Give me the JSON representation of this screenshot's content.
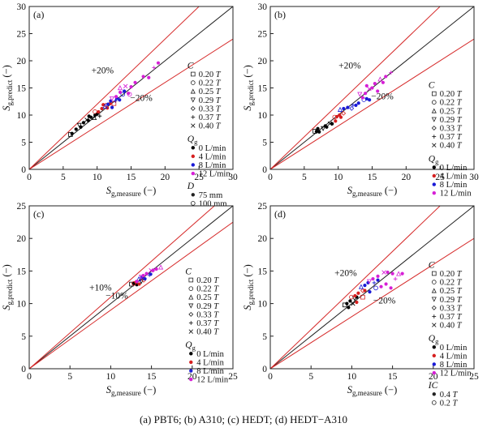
{
  "caption": "(a) PBT6; (b) A310; (c) HEDT; (d) HEDT−A310",
  "chart_data": [
    {
      "type": "scatter",
      "panel_label": "(a)",
      "xlabel_main": "S",
      "xlabel_sub": "g,measure",
      "xlabel_unit": " (−)",
      "ylabel_main": "S",
      "ylabel_sub": "g,predict",
      "ylabel_unit": " (−)",
      "xlim": [
        0,
        30
      ],
      "ylim": [
        0,
        30
      ],
      "xticks": [
        0,
        5,
        10,
        15,
        20,
        25,
        30
      ],
      "yticks": [
        0,
        5,
        10,
        15,
        20,
        25,
        30
      ],
      "band_pct": 20,
      "band_labels": {
        "upper": "+20%",
        "lower": "−20%"
      },
      "legend_groups": [
        {
          "title": "C",
          "entries": [
            "0.20 T",
            "0.22 T",
            "0.25 T",
            "0.29 T",
            "0.33 T",
            "0.37 T",
            "0.40 T"
          ]
        },
        {
          "title": "Qg",
          "entries": [
            "0 L/min",
            "4 L/min",
            "8 L/min",
            "12 L/min"
          ]
        },
        {
          "title": "D",
          "entries": [
            "75 mm",
            "100 mm"
          ]
        }
      ],
      "series": [
        {
          "name": "0 L/min",
          "color": "#000000",
          "points": [
            [
              5.9,
              6.2
            ],
            [
              6.3,
              6.6
            ],
            [
              6.9,
              7.4
            ],
            [
              7.2,
              7.9
            ],
            [
              7.6,
              7.8
            ],
            [
              8.0,
              8.6
            ],
            [
              8.3,
              8.9
            ],
            [
              8.7,
              9.0
            ],
            [
              9.1,
              9.6
            ],
            [
              9.4,
              9.3
            ],
            [
              9.7,
              10.0
            ],
            [
              10.0,
              10.2
            ],
            [
              10.2,
              9.6
            ],
            [
              8.8,
              9.8
            ]
          ]
        },
        {
          "name": "4 L/min",
          "color": "#d62020",
          "points": [
            [
              9.5,
              10.4
            ],
            [
              10.2,
              10.6
            ],
            [
              10.7,
              11.2
            ],
            [
              11.1,
              11.6
            ],
            [
              11.5,
              11.3
            ],
            [
              11.9,
              12.1
            ],
            [
              12.3,
              11.9
            ],
            [
              10.9,
              11.9
            ]
          ]
        },
        {
          "name": "8 L/min",
          "color": "#1a1ad6",
          "points": [
            [
              11.0,
              11.4
            ],
            [
              11.6,
              12.0
            ],
            [
              12.0,
              12.6
            ],
            [
              12.5,
              12.4
            ],
            [
              12.9,
              13.1
            ],
            [
              13.3,
              12.8
            ],
            [
              13.6,
              13.6
            ],
            [
              12.2,
              11.4
            ],
            [
              14.0,
              14.4
            ]
          ]
        },
        {
          "name": "12 L/min",
          "color": "#d61fd6",
          "points": [
            [
              12.0,
              12.8
            ],
            [
              12.8,
              13.4
            ],
            [
              13.4,
              14.2
            ],
            [
              14.0,
              15.1
            ],
            [
              14.6,
              14.0
            ],
            [
              15.0,
              15.2
            ],
            [
              13.2,
              14.8
            ],
            [
              15.6,
              16.0
            ],
            [
              16.8,
              17.1
            ],
            [
              18.2,
              18.5
            ],
            [
              19.0,
              19.6
            ],
            [
              17.6,
              16.9
            ],
            [
              14.6,
              13.6
            ]
          ]
        }
      ]
    },
    {
      "type": "scatter",
      "panel_label": "(b)",
      "xlabel_main": "S",
      "xlabel_sub": "g,measure",
      "xlabel_unit": " (−)",
      "ylabel_main": "S",
      "ylabel_sub": "g,predict",
      "ylabel_unit": " (−)",
      "xlim": [
        0,
        30
      ],
      "ylim": [
        0,
        30
      ],
      "xticks": [
        0,
        5,
        10,
        15,
        20,
        25,
        30
      ],
      "yticks": [
        0,
        5,
        10,
        15,
        20,
        25,
        30
      ],
      "band_pct": 20,
      "band_labels": {
        "upper": "+20%",
        "lower": "−20%"
      },
      "legend_groups": [
        {
          "title": "C",
          "entries": [
            "0.20 T",
            "0.22 T",
            "0.25 T",
            "0.29 T",
            "0.33 T",
            "0.37 T",
            "0.40 T"
          ]
        },
        {
          "title": "Qg",
          "entries": [
            "0 L/min",
            "4 L/min",
            "8 L/min",
            "12 L/min"
          ]
        }
      ],
      "series": [
        {
          "name": "0 L/min",
          "color": "#000000",
          "points": [
            [
              6.4,
              6.8
            ],
            [
              6.8,
              7.0
            ],
            [
              7.2,
              6.9
            ],
            [
              7.6,
              7.3
            ],
            [
              7.0,
              7.5
            ],
            [
              8.1,
              8.0
            ],
            [
              8.6,
              8.2
            ],
            [
              9.1,
              8.4
            ],
            [
              8.3,
              7.8
            ]
          ]
        },
        {
          "name": "4 L/min",
          "color": "#d62020",
          "points": [
            [
              9.3,
              9.4
            ],
            [
              9.8,
              9.7
            ],
            [
              10.2,
              10.0
            ],
            [
              10.6,
              10.1
            ],
            [
              9.6,
              8.9
            ],
            [
              10.4,
              9.6
            ]
          ]
        },
        {
          "name": "8 L/min",
          "color": "#1a1ad6",
          "points": [
            [
              10.1,
              10.8
            ],
            [
              10.8,
              11.2
            ],
            [
              11.4,
              11.4
            ],
            [
              12.0,
              11.6
            ],
            [
              12.6,
              11.8
            ],
            [
              13.0,
              12.2
            ],
            [
              13.6,
              12.6
            ],
            [
              14.2,
              13.0
            ],
            [
              14.6,
              12.8
            ],
            [
              11.8,
              11.0
            ]
          ]
        },
        {
          "name": "12 L/min",
          "color": "#d61fd6",
          "points": [
            [
              13.0,
              13.6
            ],
            [
              13.6,
              13.2
            ],
            [
              14.0,
              14.0
            ],
            [
              14.4,
              14.6
            ],
            [
              15.0,
              15.0
            ],
            [
              15.4,
              15.8
            ],
            [
              16.0,
              16.4
            ],
            [
              16.6,
              16.0
            ],
            [
              17.0,
              17.1
            ],
            [
              17.6,
              17.6
            ],
            [
              15.8,
              14.4
            ],
            [
              14.2,
              15.4
            ]
          ]
        }
      ]
    },
    {
      "type": "scatter",
      "panel_label": "(c)",
      "xlabel_main": "S",
      "xlabel_sub": "g,measure",
      "xlabel_unit": " (−)",
      "ylabel_main": "S",
      "ylabel_sub": "g,predict",
      "ylabel_unit": " (−)",
      "xlim": [
        0,
        25
      ],
      "ylim": [
        0,
        25
      ],
      "xticks": [
        0,
        5,
        10,
        15,
        20,
        25
      ],
      "yticks": [
        0,
        5,
        10,
        15,
        20,
        25
      ],
      "band_pct": 10,
      "band_labels": {
        "upper": "+10%",
        "lower": "−10%"
      },
      "legend_groups": [
        {
          "title": "C",
          "entries": [
            "0.20 T",
            "0.22 T",
            "0.25 T",
            "0.29 T",
            "0.33 T",
            "0.37 T",
            "0.40 T"
          ]
        },
        {
          "title": "Qg",
          "entries": [
            "0 L/min",
            "4 L/min",
            "8 L/min",
            "12 L/min"
          ]
        }
      ],
      "series": [
        {
          "name": "0 L/min",
          "color": "#000000",
          "points": [
            [
              12.4,
              12.8
            ],
            [
              12.8,
              13.1
            ],
            [
              13.2,
              12.9
            ],
            [
              13.6,
              13.2
            ]
          ]
        },
        {
          "name": "4 L/min",
          "color": "#d62020",
          "points": [
            [
              12.7,
              12.9
            ],
            [
              13.1,
              13.3
            ],
            [
              13.5,
              13.0
            ],
            [
              13.9,
              13.4
            ]
          ]
        },
        {
          "name": "8 L/min",
          "color": "#1a1ad6",
          "points": [
            [
              13.3,
              13.6
            ],
            [
              13.8,
              14.0
            ],
            [
              14.2,
              13.8
            ],
            [
              14.6,
              14.2
            ],
            [
              14.9,
              14.5
            ]
          ]
        },
        {
          "name": "12 L/min",
          "color": "#d61fd6",
          "points": [
            [
              13.6,
              13.9
            ],
            [
              14.0,
              14.3
            ],
            [
              14.4,
              14.6
            ],
            [
              14.8,
              14.9
            ],
            [
              15.2,
              15.1
            ],
            [
              15.6,
              15.3
            ],
            [
              16.0,
              15.4
            ],
            [
              13.2,
              13.4
            ]
          ]
        }
      ]
    },
    {
      "type": "scatter",
      "panel_label": "(d)",
      "xlabel_main": "S",
      "xlabel_sub": "g,measure",
      "xlabel_unit": " (−)",
      "ylabel_main": "S",
      "ylabel_sub": "g,predict",
      "ylabel_unit": " (−)",
      "xlim": [
        0,
        25
      ],
      "ylim": [
        0,
        25
      ],
      "xticks": [
        0,
        5,
        10,
        15,
        20,
        25
      ],
      "yticks": [
        0,
        5,
        10,
        15,
        20,
        25
      ],
      "band_pct": 20,
      "band_labels": {
        "upper": "+20%",
        "lower": "−20%"
      },
      "legend_groups": [
        {
          "title": "C",
          "entries": [
            "0.20 T",
            "0.22 T",
            "0.25 T",
            "0.29 T",
            "0.33 T",
            "0.37 T",
            "0.40 T"
          ]
        },
        {
          "title": "Qg",
          "entries": [
            "0 L/min",
            "4 L/min",
            "8 L/min",
            "12 L/min"
          ]
        },
        {
          "title": "IC",
          "entries": [
            "0.4 T",
            "0.2 T"
          ]
        }
      ],
      "series": [
        {
          "name": "0 L/min",
          "color": "#000000",
          "points": [
            [
              9.0,
              9.6
            ],
            [
              9.4,
              10.0
            ],
            [
              9.8,
              10.4
            ],
            [
              10.2,
              10.6
            ],
            [
              10.6,
              11.0
            ],
            [
              9.6,
              9.4
            ],
            [
              10.0,
              9.8
            ]
          ]
        },
        {
          "name": "4 L/min",
          "color": "#d62020",
          "points": [
            [
              9.8,
              10.8
            ],
            [
              10.4,
              11.2
            ],
            [
              10.8,
              11.6
            ],
            [
              11.2,
              11.8
            ],
            [
              11.6,
              12.0
            ],
            [
              10.6,
              10.2
            ],
            [
              11.2,
              10.8
            ]
          ]
        },
        {
          "name": "8 L/min",
          "color": "#1a1ad6",
          "points": [
            [
              11.0,
              12.4
            ],
            [
              11.6,
              12.8
            ],
            [
              12.0,
              13.2
            ],
            [
              12.6,
              13.0
            ],
            [
              13.2,
              13.6
            ],
            [
              12.2,
              11.8
            ],
            [
              12.8,
              12.2
            ]
          ]
        },
        {
          "name": "12 L/min",
          "color": "#d61fd6",
          "points": [
            [
              12.0,
              13.2
            ],
            [
              12.6,
              13.8
            ],
            [
              13.2,
              14.2
            ],
            [
              13.8,
              14.6
            ],
            [
              14.4,
              14.8
            ],
            [
              15.0,
              14.6
            ],
            [
              15.6,
              14.4
            ],
            [
              14.2,
              13.0
            ],
            [
              13.6,
              12.6
            ],
            [
              15.2,
              13.6
            ],
            [
              16.2,
              14.6
            ],
            [
              14.8,
              12.4
            ]
          ]
        }
      ]
    }
  ]
}
